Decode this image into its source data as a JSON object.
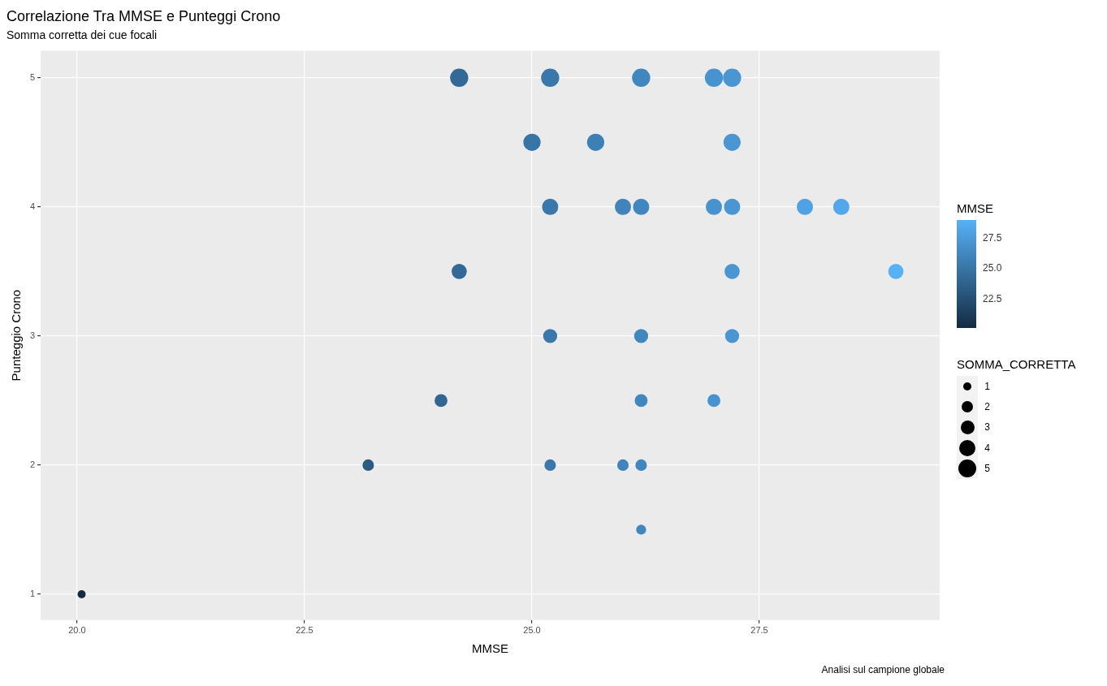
{
  "chart_data": {
    "type": "bubble",
    "title": "Correlazione Tra MMSE e Punteggi Crono",
    "subtitle": "Somma corretta dei cue focali",
    "xlabel": "MMSE",
    "ylabel": "Punteggio Crono",
    "x": [
      24.2,
      25.2,
      26.2,
      27.0,
      27.2,
      25.0,
      25.7,
      27.2,
      25.2,
      26.0,
      26.2,
      27.0,
      27.2,
      28.0,
      28.4,
      24.2,
      27.2,
      29.0,
      25.2,
      26.2,
      27.2,
      24.0,
      26.2,
      27.0,
      23.2,
      25.2,
      26.0,
      26.2,
      26.2,
      20.05
    ],
    "values": [
      5,
      5,
      5,
      5,
      5,
      4.5,
      4.5,
      4.5,
      4,
      4,
      4,
      4,
      4,
      4,
      4,
      3.5,
      3.5,
      3.5,
      3,
      3,
      3,
      2.5,
      2.5,
      2.5,
      2,
      2,
      2,
      2,
      1.5,
      1
    ],
    "sizes": [
      5,
      5,
      5,
      5,
      5,
      4.5,
      4.5,
      4.5,
      4,
      4,
      4,
      4,
      4,
      4,
      4,
      3.5,
      3.5,
      3.5,
      3,
      3,
      3,
      2.5,
      2.5,
      2.5,
      2,
      2,
      2,
      2,
      1.5,
      1
    ],
    "cvalues": [
      24.2,
      25.2,
      26.2,
      27.0,
      27.2,
      25.0,
      25.7,
      27.2,
      25.2,
      26.0,
      26.2,
      27.0,
      27.2,
      28.0,
      28.4,
      24.2,
      27.2,
      29.0,
      25.2,
      26.2,
      27.2,
      24.0,
      26.2,
      27.0,
      23.2,
      25.2,
      26.0,
      26.2,
      26.2,
      20.05
    ],
    "clabel": "MMSE",
    "clim": [
      20.05,
      29.0
    ],
    "cticks": [
      22.5,
      {
        "value": 25,
        "label": "25.0"
      },
      27.5
    ],
    "legend_title": "SOMMA_CORRETTA",
    "size_legend": [
      1,
      2,
      3,
      4,
      5
    ],
    "xlim": [
      19.6,
      29.48
    ],
    "xticks": [
      {
        "value": 20,
        "label": "20.0"
      },
      22.5,
      {
        "value": 25,
        "label": "25.0"
      },
      27.5
    ],
    "ylim": [
      0.8,
      5.21
    ],
    "yticks": [
      1,
      2,
      3,
      4,
      5
    ],
    "grid": true,
    "annotations": [
      "Analisi sul campione globale"
    ]
  }
}
